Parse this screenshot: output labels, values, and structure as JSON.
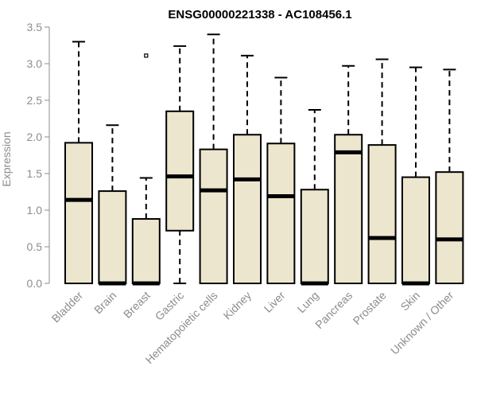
{
  "chart_data": {
    "type": "boxplot",
    "title": "ENSG00000221338 - AC108456.1",
    "xlabel": "",
    "ylabel": "Expression",
    "ylim": [
      0,
      3.5
    ],
    "yticks": [
      "0.0",
      "0.5",
      "1.0",
      "1.5",
      "2.0",
      "2.5",
      "3.0",
      "3.5"
    ],
    "grid": false,
    "box_fill": "#ede6cf",
    "box_stroke": "#000000",
    "categories": [
      "Bladder",
      "Brain",
      "Breast",
      "Gastric",
      "Hematopoietic cells",
      "Kidney",
      "Liver",
      "Lung",
      "Pancreas",
      "Prostate",
      "Skin",
      "Unknown / Other"
    ],
    "boxes": [
      {
        "whisker_low": 0.0,
        "q1": 0.0,
        "median": 1.14,
        "q3": 1.92,
        "whisker_high": 3.3,
        "outliers": []
      },
      {
        "whisker_low": 0.0,
        "q1": 0.0,
        "median": 0.0,
        "q3": 1.26,
        "whisker_high": 2.16,
        "outliers": []
      },
      {
        "whisker_low": 0.0,
        "q1": 0.0,
        "median": 0.0,
        "q3": 0.88,
        "whisker_high": 1.44,
        "outliers": [
          3.11
        ]
      },
      {
        "whisker_low": 0.0,
        "q1": 0.72,
        "median": 1.46,
        "q3": 2.35,
        "whisker_high": 3.24,
        "outliers": []
      },
      {
        "whisker_low": 0.0,
        "q1": 0.0,
        "median": 1.27,
        "q3": 1.83,
        "whisker_high": 3.4,
        "outliers": []
      },
      {
        "whisker_low": 0.0,
        "q1": 0.0,
        "median": 1.42,
        "q3": 2.03,
        "whisker_high": 3.11,
        "outliers": []
      },
      {
        "whisker_low": 0.0,
        "q1": 0.0,
        "median": 1.19,
        "q3": 1.91,
        "whisker_high": 2.81,
        "outliers": []
      },
      {
        "whisker_low": 0.0,
        "q1": 0.0,
        "median": 0.0,
        "q3": 1.28,
        "whisker_high": 2.37,
        "outliers": []
      },
      {
        "whisker_low": 0.0,
        "q1": 0.0,
        "median": 1.79,
        "q3": 2.03,
        "whisker_high": 2.97,
        "outliers": []
      },
      {
        "whisker_low": 0.0,
        "q1": 0.0,
        "median": 0.62,
        "q3": 1.89,
        "whisker_high": 3.06,
        "outliers": []
      },
      {
        "whisker_low": 0.0,
        "q1": 0.0,
        "median": 0.0,
        "q3": 1.45,
        "whisker_high": 2.95,
        "outliers": []
      },
      {
        "whisker_low": 0.0,
        "q1": 0.0,
        "median": 0.6,
        "q3": 1.52,
        "whisker_high": 2.92,
        "outliers": []
      }
    ]
  }
}
